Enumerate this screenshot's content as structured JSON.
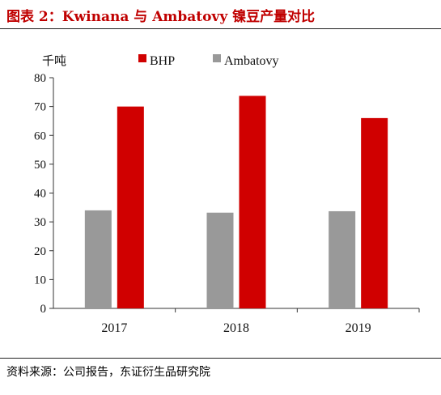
{
  "figure_title": "图表 2：Kwinana 与 Ambatovy 镍豆产量对比",
  "source": "资料来源：公司报告，东证衍生品研究院",
  "colors": {
    "BHP": "#d00000",
    "Ambatovy": "#999999",
    "title": "#c00000"
  },
  "chart_data": {
    "type": "bar",
    "title": "",
    "xlabel": "",
    "ylabel": "千吨",
    "categories": [
      "2017",
      "2018",
      "2019"
    ],
    "series": [
      {
        "name": "Ambatovy",
        "values": [
          34,
          33.2,
          33.7
        ]
      },
      {
        "name": "BHP",
        "values": [
          70,
          73.7,
          66
        ]
      }
    ],
    "ylim": [
      0,
      80
    ],
    "yticks": [
      0,
      10,
      20,
      30,
      40,
      50,
      60,
      70,
      80
    ],
    "grid": false,
    "legend_placement": "top"
  }
}
